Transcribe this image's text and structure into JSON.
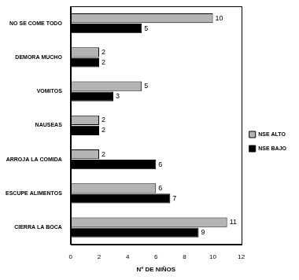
{
  "chart_data": {
    "type": "bar",
    "orientation": "horizontal",
    "categories": [
      "NO SE COME TODO",
      "DEMORA MUCHO",
      "VOMITOS",
      "NAUSEAS",
      "ARROJA LA COMIDA",
      "ESCUPE ALIMENTOS",
      "CIERRA LA BOCA"
    ],
    "series": [
      {
        "name": "NSE ALTO",
        "color": "#b4b4b4",
        "values": [
          10,
          2,
          5,
          2,
          2,
          6,
          11
        ]
      },
      {
        "name": "NSE BAJO",
        "color": "#000000",
        "values": [
          5,
          2,
          3,
          2,
          6,
          7,
          9
        ]
      }
    ],
    "xlabel": "Nº DE NIÑOS",
    "xlim": [
      0,
      12
    ],
    "xticks": [
      0,
      2,
      4,
      6,
      8,
      10,
      12
    ],
    "grid": false,
    "legend": "right",
    "data_labels": true
  }
}
